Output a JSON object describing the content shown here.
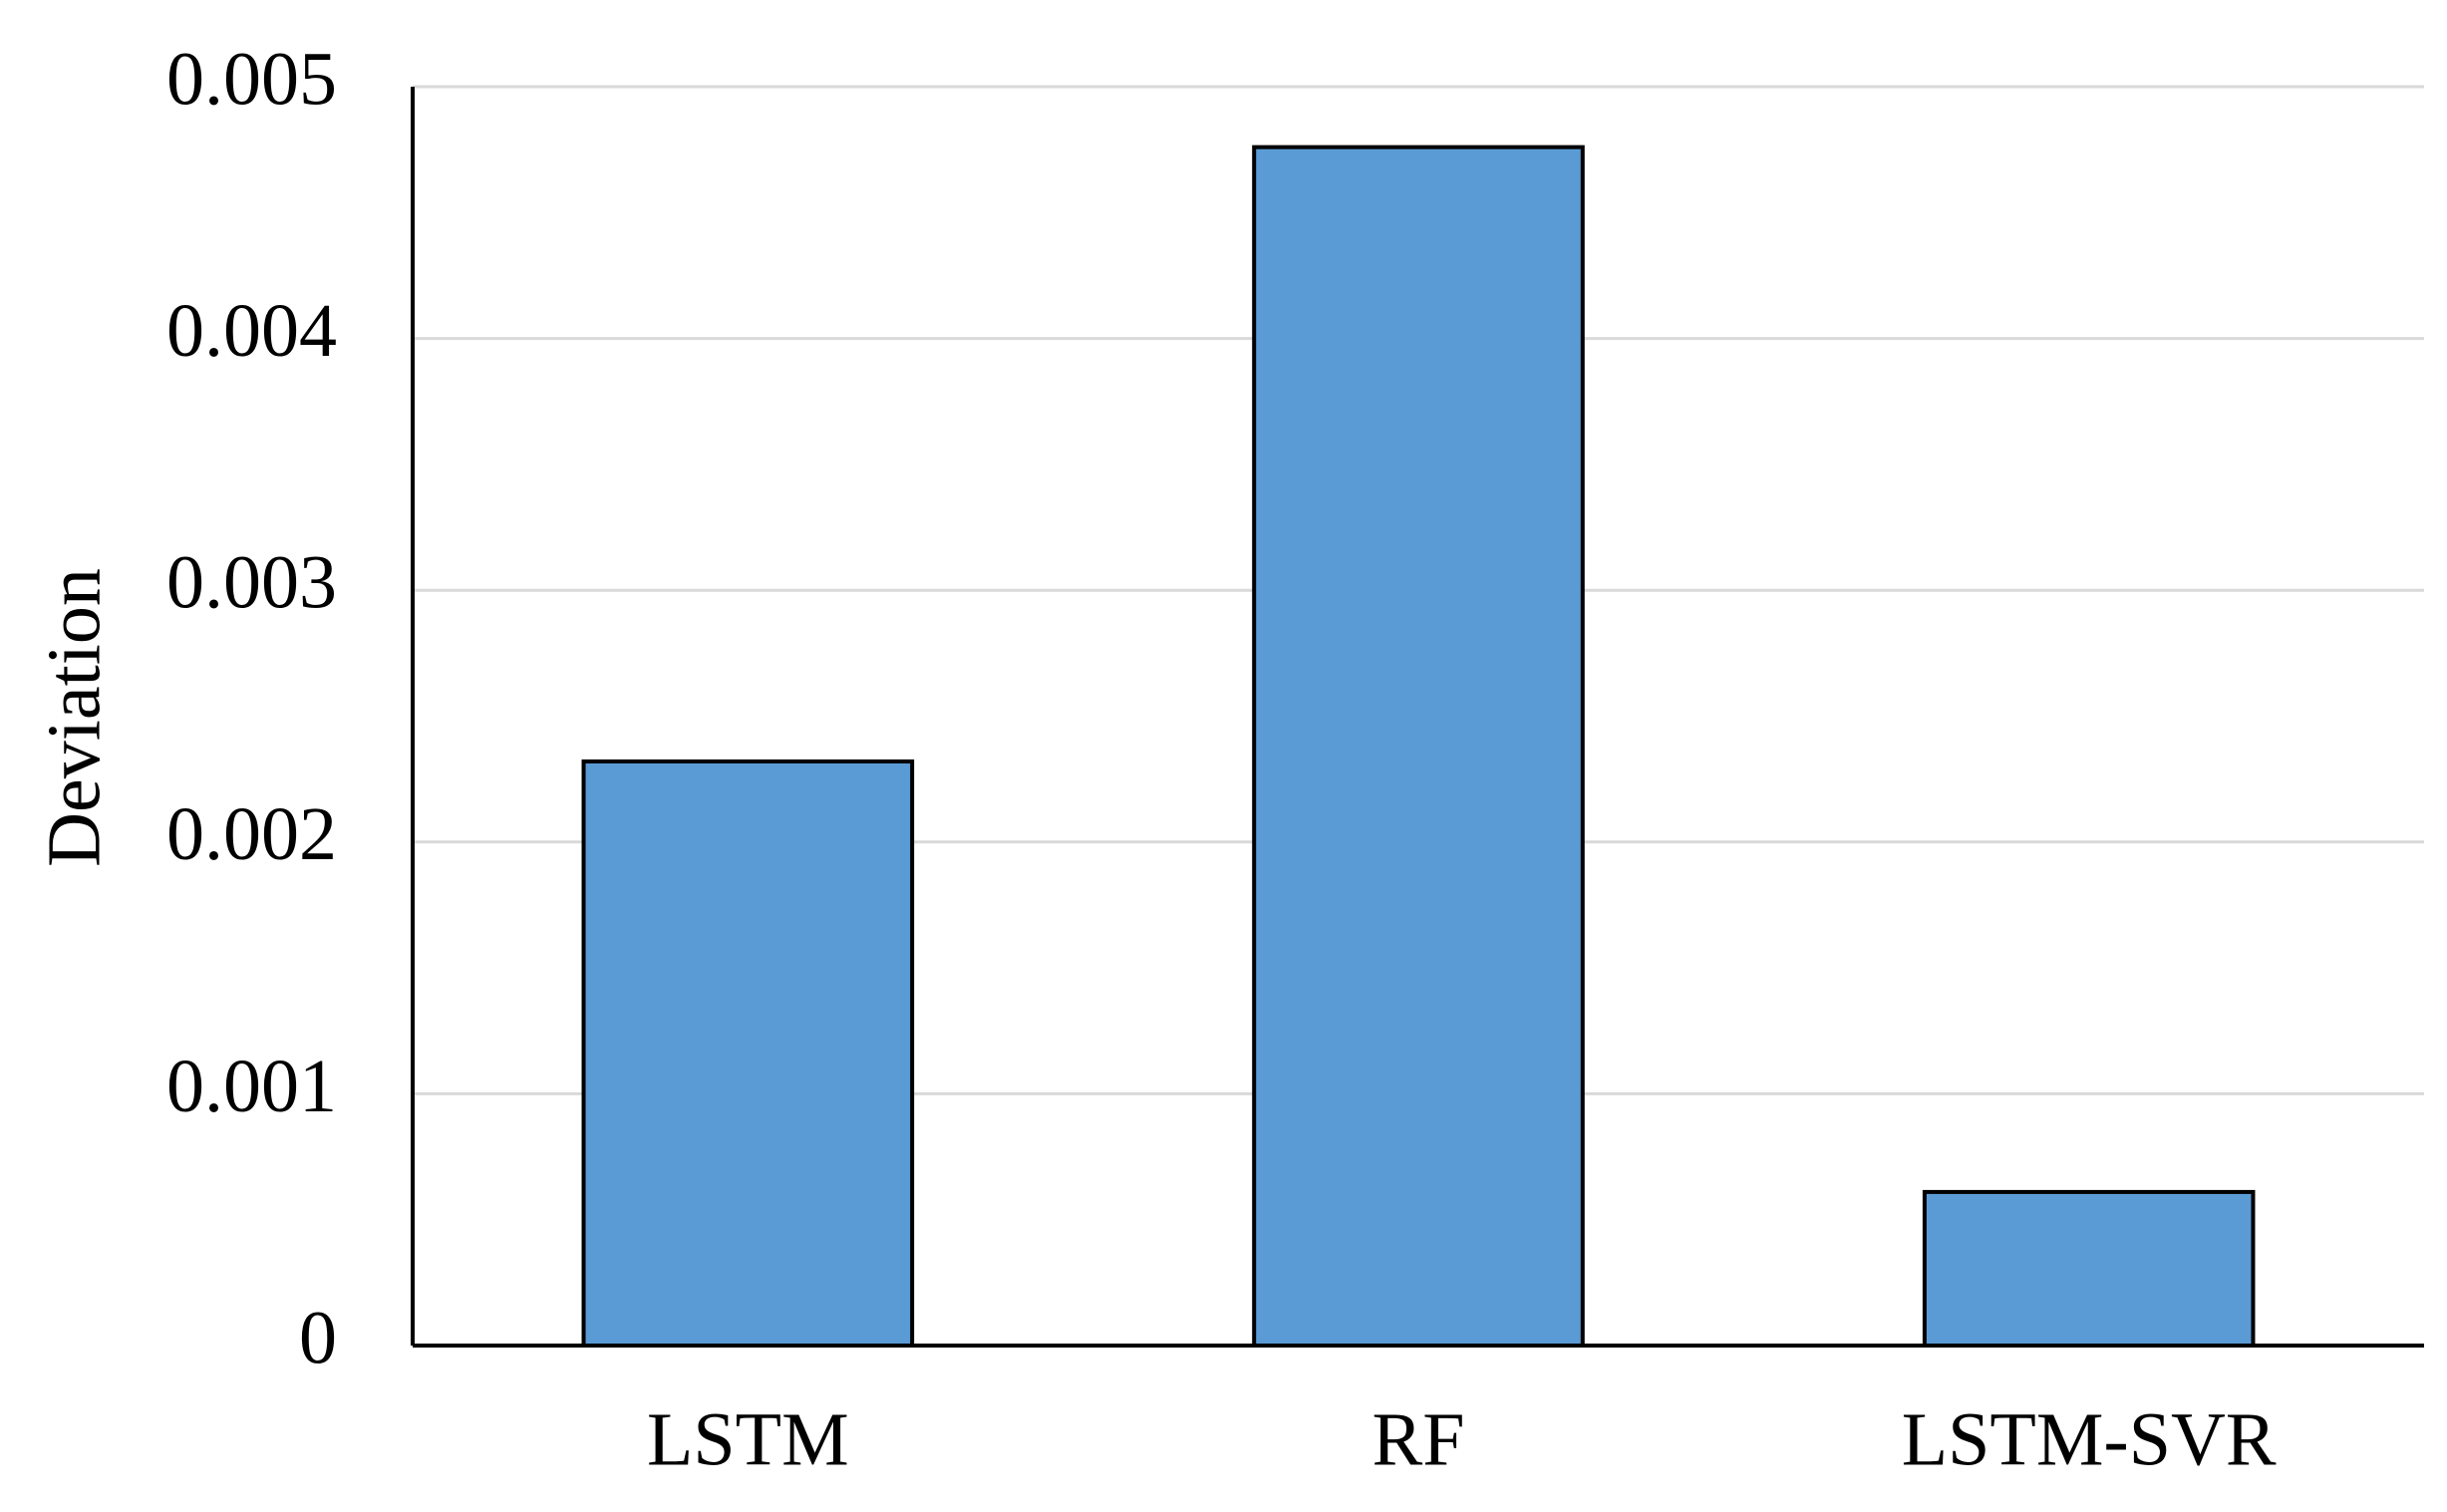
{
  "chart_data": {
    "type": "bar",
    "y_label": "Deviation",
    "categories": [
      "LSTM",
      "RF",
      "LSTM-SVR"
    ],
    "values": [
      0.00232,
      0.00476,
      0.00061
    ],
    "color": "#5b9bd5",
    "ylim": [
      0,
      0.005
    ],
    "yticks": [
      0,
      0.001,
      0.002,
      0.003,
      0.004,
      0.005
    ],
    "grid": true
  }
}
